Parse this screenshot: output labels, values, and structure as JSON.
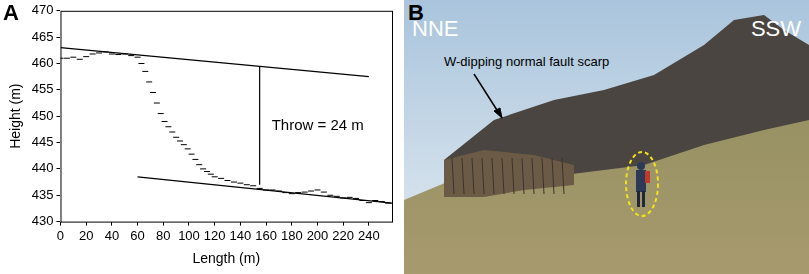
{
  "chart_data": {
    "type": "scatter",
    "panel_label": "A",
    "x_label": "Length (m)",
    "y_label": "Height (m)",
    "xlim": [
      0,
      258
    ],
    "xticks": [
      0,
      20,
      40,
      60,
      80,
      100,
      120,
      140,
      160,
      180,
      200,
      220,
      240
    ],
    "ylim": [
      430,
      470
    ],
    "yticks": [
      430,
      435,
      440,
      445,
      450,
      455,
      460,
      465,
      470
    ],
    "grid": false,
    "series": [
      {
        "type": "scatter",
        "marker": "dash",
        "color": "#000000",
        "x": [
          0,
          5,
          10,
          15,
          20,
          25,
          30,
          35,
          40,
          45,
          50,
          55,
          60,
          63,
          66,
          69,
          72,
          75,
          78,
          81,
          84,
          87,
          90,
          93,
          96,
          99,
          102,
          105,
          108,
          111,
          114,
          117,
          120,
          125,
          130,
          135,
          140,
          145,
          150,
          155,
          160,
          165,
          170,
          175,
          180,
          185,
          190,
          195,
          200,
          205,
          210,
          215,
          220,
          225,
          230,
          235,
          240,
          245,
          250,
          255
        ],
        "values": [
          461,
          461,
          461.2,
          460.8,
          461.3,
          461.8,
          462,
          462.2,
          461.8,
          461.7,
          461.8,
          461.5,
          461.2,
          460,
          458.5,
          456.5,
          454.5,
          452.5,
          450.5,
          449,
          448,
          447,
          446,
          445.3,
          444.6,
          443.8,
          442.8,
          441.8,
          440.8,
          440,
          439.5,
          439,
          438.5,
          438.2,
          437.8,
          437.5,
          437.3,
          437,
          436.8,
          436.3,
          436,
          436,
          435.8,
          435.5,
          435.3,
          435.5,
          435.6,
          435.8,
          436,
          435.6,
          435,
          434.8,
          434.5,
          434.6,
          434.4,
          434,
          433.6,
          434,
          433.8,
          433.5
        ]
      },
      {
        "type": "line",
        "line_style": "solid",
        "color": "#000000",
        "x": [
          0,
          240
        ],
        "values": [
          463,
          457.5
        ]
      },
      {
        "type": "line",
        "line_style": "solid",
        "color": "#000000",
        "x": [
          60,
          258
        ],
        "values": [
          438.5,
          433.5
        ]
      },
      {
        "type": "line",
        "line_style": "solid",
        "color": "#000000",
        "x": [
          155,
          155
        ],
        "values": [
          437,
          459.5
        ]
      }
    ],
    "annotations": [
      {
        "text": "Throw = 24 m"
      }
    ]
  },
  "photo": {
    "panel_label": "B",
    "left_label": "NNE",
    "right_label": "SSW",
    "callout": "W-dipping normal fault scarp"
  }
}
